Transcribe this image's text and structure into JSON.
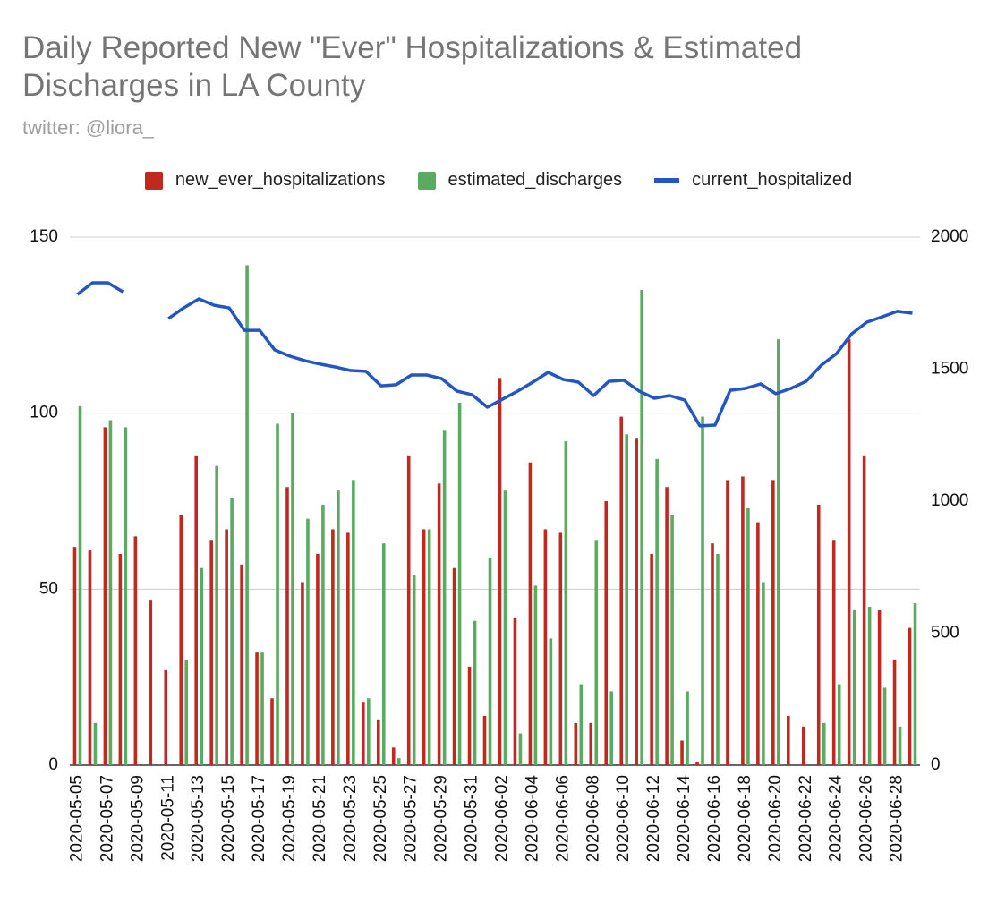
{
  "chart_data": {
    "type": "bar",
    "title": "Daily Reported New \"Ever\" Hospitalizations & Estimated Discharges in LA County",
    "subtitle": "twitter: @liora_",
    "categories": [
      "2020-05-05",
      null,
      "2020-05-07",
      null,
      "2020-05-09",
      null,
      "2020-05-11",
      null,
      "2020-05-13",
      null,
      "2020-05-15",
      null,
      "2020-05-17",
      null,
      "2020-05-19",
      null,
      "2020-05-21",
      null,
      "2020-05-23",
      null,
      "2020-05-25",
      null,
      "2020-05-27",
      null,
      "2020-05-29",
      null,
      "2020-05-31",
      null,
      "2020-06-02",
      null,
      "2020-06-04",
      null,
      "2020-06-06",
      null,
      "2020-06-08",
      null,
      "2020-06-10",
      null,
      "2020-06-12",
      null,
      "2020-06-14",
      null,
      "2020-06-16",
      null,
      "2020-06-18",
      null,
      "2020-06-20",
      null,
      "2020-06-22",
      null,
      "2020-06-24",
      null,
      "2020-06-26",
      null,
      "2020-06-28",
      null
    ],
    "series": [
      {
        "name": "new_ever_hospitalizations",
        "type": "bar",
        "color": "#c0291f",
        "values": [
          62,
          61,
          96,
          60,
          65,
          47,
          27,
          71,
          88,
          64,
          67,
          57,
          32,
          19,
          79,
          52,
          60,
          67,
          66,
          18,
          13,
          5,
          88,
          67,
          80,
          56,
          28,
          14,
          110,
          42,
          86,
          67,
          66,
          12,
          12,
          75,
          99,
          93,
          60,
          79,
          7,
          1,
          63,
          81,
          82,
          69,
          81,
          14,
          11,
          74,
          64,
          121,
          88,
          44,
          30,
          39
        ]
      },
      {
        "name": "estimated_discharges",
        "type": "bar",
        "color": "#5aab61",
        "values": [
          102,
          12,
          98,
          96,
          null,
          null,
          null,
          30,
          56,
          85,
          76,
          142,
          32,
          97,
          100,
          70,
          74,
          78,
          81,
          19,
          63,
          2,
          54,
          67,
          95,
          103,
          41,
          59,
          78,
          9,
          51,
          36,
          92,
          23,
          64,
          21,
          94,
          135,
          87,
          71,
          21,
          99,
          60,
          null,
          73,
          52,
          121,
          null,
          null,
          12,
          23,
          44,
          45,
          22,
          11,
          46
        ]
      },
      {
        "name": "current_hospitalized",
        "type": "line",
        "axis": "y2",
        "color": "#2356c4",
        "values": [
          1783,
          1827,
          1827,
          1793,
          null,
          null,
          1692,
          1732,
          1766,
          1742,
          1732,
          1647,
          1647,
          1573,
          1549,
          1532,
          1519,
          1508,
          1495,
          1492,
          1437,
          1441,
          1478,
          1478,
          1464,
          1417,
          1403,
          1356,
          1386,
          1417,
          1451,
          1488,
          1461,
          1451,
          1400,
          1454,
          1458,
          1417,
          1390,
          1400,
          1383,
          1285,
          1288,
          1420,
          1427,
          1444,
          1407,
          1427,
          1454,
          1515,
          1559,
          1634,
          1678,
          1698,
          1719,
          1712
        ]
      }
    ],
    "ylim": [
      0,
      150
    ],
    "yticks": [
      0,
      50,
      100,
      150
    ],
    "y2lim": [
      0,
      2000
    ],
    "y2ticks": [
      0,
      500,
      1000,
      1500,
      2000
    ],
    "grid": true
  }
}
